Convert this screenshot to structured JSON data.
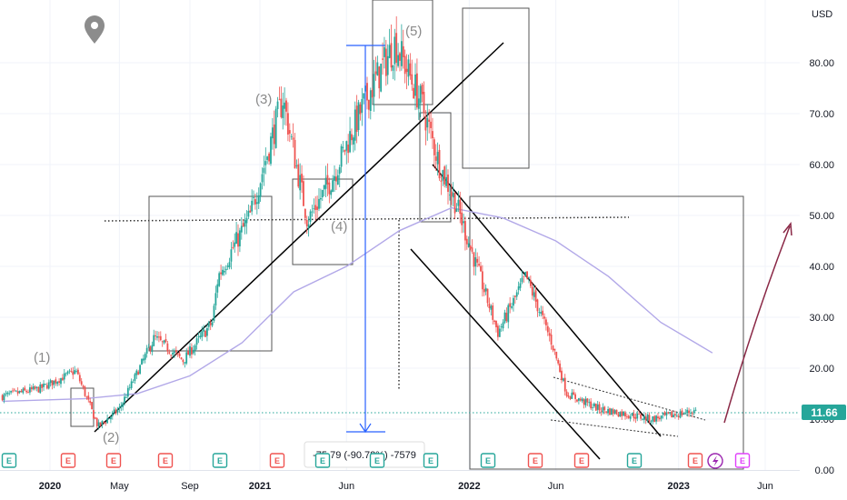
{
  "chart_data": {
    "type": "candlestick",
    "currency": "USD",
    "y_ticks": [
      "80.00",
      "70.00",
      "60.00",
      "50.00",
      "40.00",
      "30.00",
      "20.00",
      "10.00",
      "0.00"
    ],
    "y_range": [
      0,
      90
    ],
    "x_ticks": [
      {
        "label": "2020",
        "date": "2020-01-01",
        "bold": true
      },
      {
        "label": "May",
        "date": "2020-05-01",
        "bold": false
      },
      {
        "label": "Sep",
        "date": "2020-09-01",
        "bold": false
      },
      {
        "label": "2021",
        "date": "2021-01-01",
        "bold": true
      },
      {
        "label": "Jun",
        "date": "2021-06-01",
        "bold": false
      },
      {
        "label": "2022",
        "date": "2022-01-01",
        "bold": true
      },
      {
        "label": "Jun",
        "date": "2022-06-01",
        "bold": false
      },
      {
        "label": "2023",
        "date": "2023-01-01",
        "bold": true
      },
      {
        "label": "Jun",
        "date": "2023-06-01",
        "bold": false
      }
    ],
    "last_price": "11.66",
    "price_series": [
      {
        "date": "2019-10-10",
        "close": 14.5
      },
      {
        "date": "2019-12-15",
        "close": 16.0
      },
      {
        "date": "2020-02-15",
        "close": 19.5
      },
      {
        "date": "2020-03-25",
        "close": 8.5
      },
      {
        "date": "2020-05-01",
        "close": 12.0
      },
      {
        "date": "2020-07-01",
        "close": 26.0
      },
      {
        "date": "2020-08-20",
        "close": 21.5
      },
      {
        "date": "2020-10-10",
        "close": 29.0
      },
      {
        "date": "2020-10-20",
        "close": 38.0
      },
      {
        "date": "2020-12-15",
        "close": 50.0
      },
      {
        "date": "2021-02-10",
        "close": 73.0
      },
      {
        "date": "2021-03-25",
        "close": 49.0
      },
      {
        "date": "2021-05-10",
        "close": 58.0
      },
      {
        "date": "2021-06-20",
        "close": 69.0
      },
      {
        "date": "2021-07-10",
        "close": 74.0
      },
      {
        "date": "2021-08-25",
        "close": 84.0
      },
      {
        "date": "2021-10-10",
        "close": 72.0
      },
      {
        "date": "2021-11-10",
        "close": 60.0
      },
      {
        "date": "2021-12-10",
        "close": 52.0
      },
      {
        "date": "2022-02-20",
        "close": 27.0
      },
      {
        "date": "2022-04-10",
        "close": 38.0
      },
      {
        "date": "2022-05-25",
        "close": 25.0
      },
      {
        "date": "2022-06-20",
        "close": 15.0
      },
      {
        "date": "2022-08-15",
        "close": 12.0
      },
      {
        "date": "2022-11-15",
        "close": 10.0
      },
      {
        "date": "2023-02-01",
        "close": 11.66
      }
    ],
    "moving_average": [
      {
        "date": "2019-10-10",
        "value": 13.5
      },
      {
        "date": "2020-03-01",
        "value": 14.0
      },
      {
        "date": "2020-06-01",
        "value": 15.0
      },
      {
        "date": "2020-09-01",
        "value": 18.5
      },
      {
        "date": "2020-12-01",
        "value": 25.0
      },
      {
        "date": "2021-03-01",
        "value": 35.0
      },
      {
        "date": "2021-06-01",
        "value": 40.0
      },
      {
        "date": "2021-09-01",
        "value": 47.0
      },
      {
        "date": "2021-12-01",
        "value": 51.5
      },
      {
        "date": "2022-03-01",
        "value": 49.5
      },
      {
        "date": "2022-06-01",
        "value": 45.0
      },
      {
        "date": "2022-09-01",
        "value": 38.0
      },
      {
        "date": "2022-12-01",
        "value": 29.0
      },
      {
        "date": "2023-03-01",
        "value": 23.0
      }
    ],
    "wave_labels": [
      "(1)",
      "(2)",
      "(3)",
      "(4)",
      "(5)"
    ],
    "measure_label": "-75.79 (-90.78%) -7579",
    "earnings_badge_label": "E",
    "colors": {
      "up": "#26a69a",
      "down": "#ef5350",
      "ma": "#b2a8e8",
      "arrow": "#8a2846",
      "measure": "#2962ff",
      "price_badge": "#26a69a"
    }
  }
}
